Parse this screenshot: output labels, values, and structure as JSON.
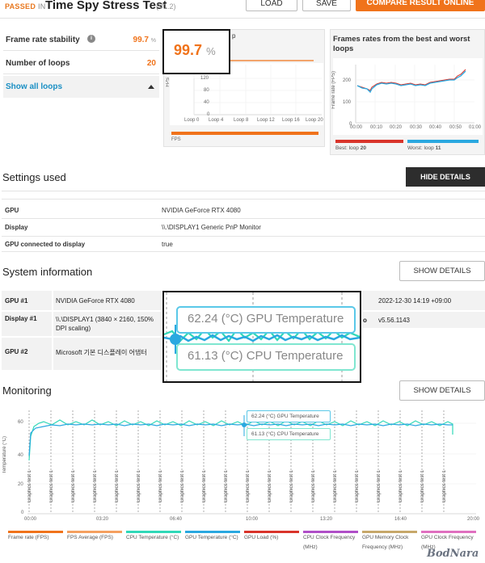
{
  "header": {
    "passed": "PASSED",
    "in": "IN",
    "title": "Time Spy Stress Test",
    "version": "(V1.2)",
    "load_label": "LOAD",
    "save_label": "SAVE",
    "compare_label": "COMPARE RESULT ONLINE"
  },
  "stats": {
    "stability_label": "Frame rate stability",
    "stability_value": "99.7",
    "stability_unit": "%",
    "loops_label": "Number of loops",
    "loops_value": "20",
    "show_loops_label": "Show all loops"
  },
  "stability_chart": {
    "callout_value": "99.7",
    "callout_unit": "%",
    "y_label": "FPS",
    "y_ticks": [
      "120",
      "80",
      "40",
      "0"
    ],
    "x_ticks": [
      "Loop 0",
      "Loop 4",
      "Loop 8",
      "Loop 12",
      "Loop 16",
      "Loop 20"
    ],
    "legend": "FPS",
    "colors": {
      "line": "#f0731b"
    }
  },
  "best_worst": {
    "title": "Frames rates from the best and worst loops",
    "y_label": "Frame rate (FPS)",
    "y_ticks": [
      "200",
      "150",
      "100",
      "50",
      "0"
    ],
    "x_ticks": [
      "00:00",
      "00:10",
      "00:20",
      "00:30",
      "00:40",
      "00:50",
      "01:00"
    ],
    "best_label": "Best: loop",
    "best_value": "20",
    "worst_label": "Worst: loop",
    "worst_value": "11",
    "colors": {
      "best": "#d9342b",
      "worst": "#2aa8e0"
    }
  },
  "settings": {
    "title": "Settings used",
    "hide_label": "HIDE DETAILS",
    "rows": [
      {
        "label": "GPU",
        "value": "NVIDIA GeForce RTX 4080"
      },
      {
        "label": "Display",
        "value": "\\\\.\\DISPLAY1 Generic PnP Monitor"
      },
      {
        "label": "GPU connected to display",
        "value": "true"
      }
    ]
  },
  "sysinfo": {
    "title": "System information",
    "show_label": "SHOW DETAILS",
    "gpu1_label": "GPU #1",
    "gpu1_value": "NVIDIA GeForce RTX 4080",
    "display1_label": "Display #1",
    "display1_value": "\\\\.\\DISPLAY1 (3840 × 2160, 150% DPI scaling)",
    "gpu2_label": "GPU #2",
    "gpu2_value": "Microsoft 기본 디스플레이 어댑터",
    "time_value": "2022-12-30 14:19 +09:00",
    "version_value": "v5.56.1143",
    "version_prefix": "o"
  },
  "zoom_callout": {
    "gpu_temp": "62.24 (°C) GPU Temperature",
    "cpu_temp": "61.13 (°C) CPU Temperature"
  },
  "monitoring": {
    "title": "Monitoring",
    "show_label": "SHOW DETAILS",
    "y_label": "Temperature (°C)",
    "y_ticks": [
      "60",
      "40",
      "20",
      "0"
    ],
    "x_ticks": [
      "00:00",
      "03:20",
      "06:40",
      "10:00",
      "13:20",
      "16:40",
      "20:00"
    ],
    "marker_label": "Graphics test 1",
    "tooltip_gpu": "62.24 (°C) GPU Temperature",
    "tooltip_cpu": "61.13 (°C) CPU Temperature",
    "legend": [
      {
        "label": "Frame rate (FPS)",
        "color": "#f0731b"
      },
      {
        "label": "FPS Average (FPS)",
        "color": "#f5a060"
      },
      {
        "label": "CPU Temperature (°C)",
        "color": "#30d8b8"
      },
      {
        "label": "GPU Temperature (°C)",
        "color": "#2aa8e0"
      },
      {
        "label": "GPU Load (%)",
        "color": "#d9342b"
      },
      {
        "label": "CPU Clock Frequency (MHz)",
        "color": "#b04fc8"
      },
      {
        "label": "GPU Memory Clock Frequency (MHz)",
        "color": "#c7a86a"
      },
      {
        "label": "GPU Clock Frequency (MHz)",
        "color": "#e070c0"
      }
    ]
  },
  "watermark": "BodNara"
}
